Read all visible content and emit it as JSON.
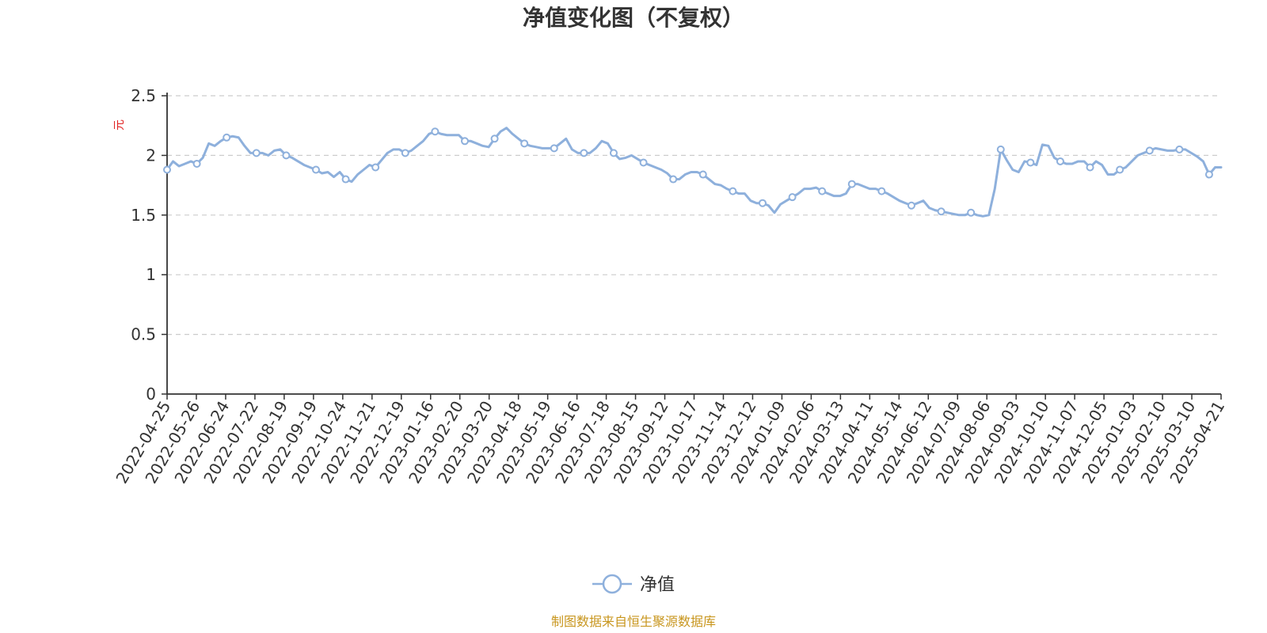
{
  "chart_data": {
    "type": "line",
    "title": "净值变化图（不复权）",
    "ylabel": "元",
    "ylim": [
      0,
      2.5
    ],
    "yticks": [
      "0",
      "0.5",
      "1",
      "1.5",
      "2",
      "2.5"
    ],
    "grid": true,
    "legend_position": "bottom-center",
    "x_tick_labels": [
      "2022-04-25",
      "2022-05-26",
      "2022-06-24",
      "2022-07-22",
      "2022-08-19",
      "2022-09-19",
      "2022-10-24",
      "2022-11-21",
      "2022-12-19",
      "2023-01-16",
      "2023-02-20",
      "2023-03-20",
      "2023-04-18",
      "2023-05-19",
      "2023-06-16",
      "2023-07-18",
      "2023-08-15",
      "2023-09-12",
      "2023-10-17",
      "2023-11-14",
      "2023-12-12",
      "2024-01-09",
      "2024-02-06",
      "2024-03-13",
      "2024-04-11",
      "2024-05-14",
      "2024-06-12",
      "2024-07-09",
      "2024-08-06",
      "2024-09-03",
      "2024-10-10",
      "2024-11-07",
      "2024-12-05",
      "2025-01-03",
      "2025-02-10",
      "2025-03-10",
      "2025-04-21"
    ],
    "series": [
      {
        "name": "净值",
        "color": "#8eb0dc",
        "values": [
          1.88,
          1.95,
          1.91,
          1.93,
          1.95,
          1.93,
          1.98,
          2.1,
          2.08,
          2.12,
          2.15,
          2.16,
          2.15,
          2.08,
          2.02,
          2.02,
          2.02,
          2.0,
          2.04,
          2.05,
          2.0,
          1.98,
          1.95,
          1.92,
          1.9,
          1.88,
          1.85,
          1.86,
          1.82,
          1.86,
          1.8,
          1.78,
          1.84,
          1.88,
          1.92,
          1.9,
          1.96,
          2.02,
          2.05,
          2.05,
          2.02,
          2.04,
          2.08,
          2.12,
          2.18,
          2.2,
          2.18,
          2.17,
          2.17,
          2.17,
          2.12,
          2.12,
          2.1,
          2.08,
          2.07,
          2.14,
          2.2,
          2.23,
          2.18,
          2.14,
          2.1,
          2.08,
          2.07,
          2.06,
          2.06,
          2.06,
          2.1,
          2.14,
          2.05,
          2.02,
          2.02,
          2.02,
          2.06,
          2.12,
          2.1,
          2.02,
          1.97,
          1.98,
          2.0,
          1.97,
          1.94,
          1.92,
          1.9,
          1.88,
          1.85,
          1.8,
          1.8,
          1.84,
          1.86,
          1.86,
          1.84,
          1.8,
          1.76,
          1.75,
          1.72,
          1.7,
          1.68,
          1.68,
          1.62,
          1.6,
          1.6,
          1.58,
          1.52,
          1.59,
          1.62,
          1.65,
          1.68,
          1.72,
          1.72,
          1.73,
          1.7,
          1.68,
          1.66,
          1.66,
          1.68,
          1.76,
          1.76,
          1.74,
          1.72,
          1.72,
          1.7,
          1.68,
          1.65,
          1.62,
          1.6,
          1.58,
          1.6,
          1.62,
          1.56,
          1.54,
          1.53,
          1.52,
          1.51,
          1.5,
          1.5,
          1.52,
          1.5,
          1.49,
          1.5,
          1.72,
          2.05,
          1.96,
          1.88,
          1.86,
          1.95,
          1.94,
          1.92,
          2.09,
          2.08,
          1.98,
          1.95,
          1.93,
          1.93,
          1.95,
          1.95,
          1.9,
          1.95,
          1.92,
          1.84,
          1.84,
          1.88,
          1.9,
          1.95,
          2.0,
          2.02,
          2.04,
          2.06,
          2.05,
          2.04,
          2.04,
          2.05,
          2.05,
          2.02,
          1.99,
          1.95,
          1.84,
          1.9,
          1.9
        ]
      }
    ],
    "marker_indices": [
      0,
      5,
      10,
      15,
      20,
      25,
      30,
      35,
      40,
      45,
      50,
      55,
      60,
      65,
      70,
      75,
      80,
      85,
      90,
      95,
      100,
      105,
      110,
      115,
      120,
      125,
      130,
      135,
      140,
      145,
      150,
      155,
      160,
      165,
      170,
      175,
      180
    ],
    "legend": [
      {
        "name": "净值"
      }
    ],
    "source_text": "制图数据来自恒生聚源数据库"
  }
}
